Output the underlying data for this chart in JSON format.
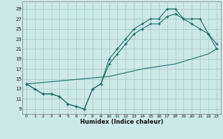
{
  "xlabel": "Humidex (Indice chaleur)",
  "bg_color": "#cde8e8",
  "grid_color": "#a8cccc",
  "line_color": "#1a6b6b",
  "xlim": [
    -0.5,
    23.5
  ],
  "ylim": [
    8.0,
    30.5
  ],
  "xticks": [
    0,
    1,
    2,
    3,
    4,
    5,
    6,
    7,
    8,
    9,
    10,
    11,
    12,
    13,
    14,
    15,
    16,
    17,
    18,
    19,
    20,
    21,
    22,
    23
  ],
  "yticks": [
    9,
    11,
    13,
    15,
    17,
    19,
    21,
    23,
    25,
    27,
    29
  ],
  "curve1_x": [
    0,
    1,
    2,
    3,
    4,
    5,
    6,
    7,
    8,
    9,
    10,
    11,
    12,
    13,
    14,
    15,
    16,
    17,
    18,
    19,
    20,
    21,
    22,
    23
  ],
  "curve1_y": [
    14,
    13,
    12,
    12,
    11.5,
    10,
    9.5,
    9,
    13,
    14,
    19,
    21,
    23,
    25,
    26,
    27,
    27,
    29,
    29,
    27,
    26,
    25,
    24,
    21
  ],
  "curve2_x": [
    0,
    1,
    2,
    3,
    4,
    5,
    6,
    7,
    8,
    9,
    10,
    11,
    12,
    13,
    14,
    15,
    16,
    17,
    18,
    19,
    20,
    21,
    22,
    23
  ],
  "curve2_y": [
    14,
    13,
    12,
    12,
    11.5,
    10,
    9.5,
    9,
    13,
    14,
    18,
    20,
    22,
    24,
    25,
    26,
    26,
    27.5,
    28,
    27,
    27,
    27,
    24,
    22
  ],
  "curve3_x": [
    0,
    10,
    14,
    16,
    18,
    19,
    20,
    21,
    22,
    23
  ],
  "curve3_y": [
    14,
    15.5,
    17,
    17.5,
    18,
    18.5,
    19,
    19.5,
    20,
    21
  ]
}
